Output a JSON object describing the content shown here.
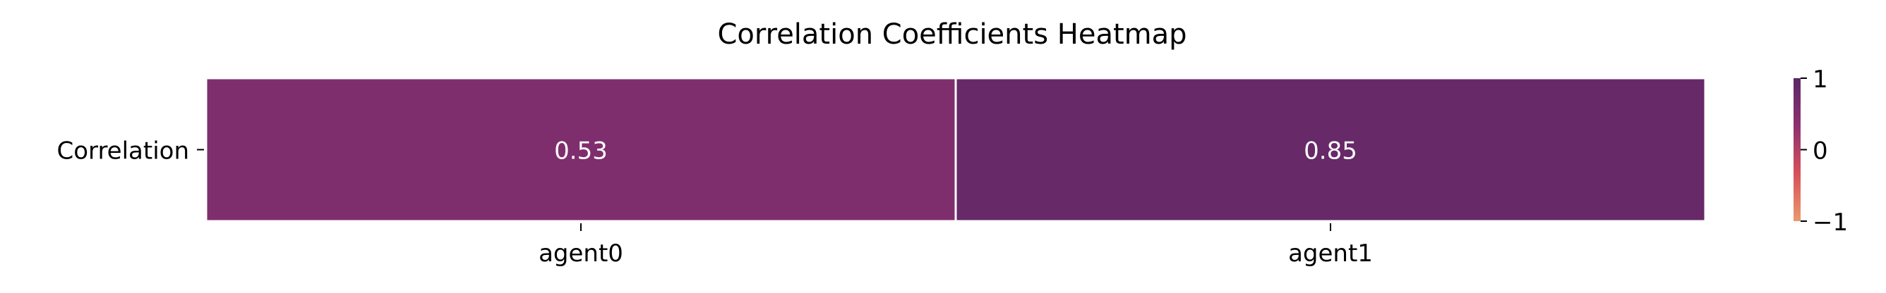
{
  "chart_data": {
    "type": "heatmap",
    "title": "Correlation Coefficients Heatmap",
    "rows": [
      "Correlation"
    ],
    "columns": [
      "agent0",
      "agent1"
    ],
    "values": [
      [
        0.53,
        0.85
      ]
    ],
    "value_labels": [
      [
        "0.53",
        "0.85"
      ]
    ],
    "colorbar": {
      "range": [
        -1,
        1
      ],
      "ticks": [
        1,
        0,
        -1
      ],
      "tick_labels": [
        "1",
        "0",
        "−1"
      ],
      "colormap": "flare",
      "colors": [
        "#e99a6e",
        "#d8505a",
        "#8e3170",
        "#5c2766"
      ]
    },
    "cell_text_color": "#ffffff",
    "grid": false
  }
}
